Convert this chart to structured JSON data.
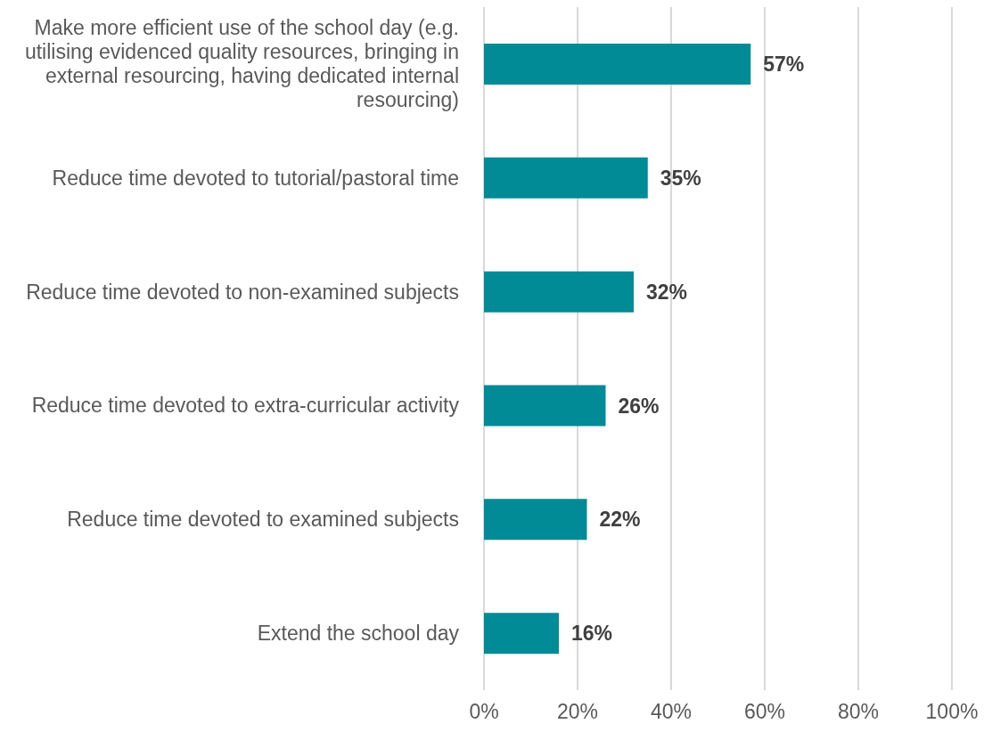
{
  "chart_data": {
    "type": "bar",
    "orientation": "horizontal",
    "categories": [
      "Make more efficient use of the school day (e.g. utilising evidenced quality resources, bringing in external resourcing, having dedicated internal resourcing)",
      "Reduce time devoted to tutorial/pastoral time",
      "Reduce time devoted to non-examined subjects",
      "Reduce time devoted to extra-curricular activity",
      "Reduce time devoted to examined subjects",
      "Extend the school day"
    ],
    "values": [
      57,
      35,
      32,
      26,
      22,
      16
    ],
    "value_labels": [
      "57%",
      "35%",
      "32%",
      "26%",
      "22%",
      "16%"
    ],
    "color": "#008b96",
    "xlim": [
      0,
      100
    ],
    "xticks": [
      {
        "value": 0,
        "label": "0%"
      },
      {
        "value": 20,
        "label": "20%"
      },
      {
        "value": 40,
        "label": "40%"
      },
      {
        "value": 60,
        "label": "60%"
      },
      {
        "value": 80,
        "label": "80%"
      },
      {
        "value": 100,
        "label": "100%"
      }
    ],
    "grid": "x"
  }
}
